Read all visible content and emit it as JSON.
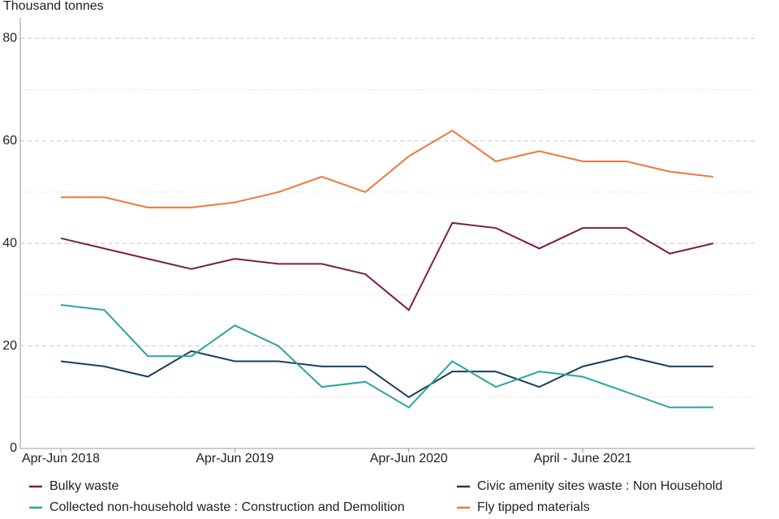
{
  "chart_data": {
    "type": "line",
    "y_axis_label": "Thousand tonnes",
    "categories": [
      "Apr-Jun 2018",
      null,
      null,
      null,
      "Apr-Jun 2019",
      null,
      null,
      null,
      "Apr-Jun 2020",
      null,
      null,
      null,
      "April - June 2021",
      null,
      null,
      null
    ],
    "series": [
      {
        "name": "Bulky waste",
        "color": "#7b1e4d",
        "values": [
          41,
          39,
          37,
          35,
          37,
          36,
          36,
          34,
          27,
          44,
          43,
          39,
          43,
          43,
          38,
          40
        ]
      },
      {
        "name": "Civic amenity sites waste : Non Household",
        "color": "#1b3d61",
        "values": [
          17,
          16,
          14,
          19,
          17,
          17,
          16,
          16,
          10,
          15,
          15,
          12,
          16,
          18,
          16,
          16
        ]
      },
      {
        "name": "Collected non-household waste : Construction and Demolition",
        "color": "#2ba59b",
        "values": [
          28,
          27,
          18,
          18,
          24,
          20,
          12,
          13,
          8,
          17,
          12,
          15,
          14,
          11,
          8,
          8
        ]
      },
      {
        "name": "Fly tipped materials",
        "color": "#f0763a",
        "values": [
          49,
          49,
          47,
          47,
          48,
          50,
          53,
          50,
          57,
          62,
          56,
          58,
          56,
          56,
          54,
          53
        ]
      }
    ],
    "ylim": [
      0,
      84
    ],
    "yticks": [
      0,
      20,
      40,
      60,
      80
    ],
    "minor_yticks": [
      10,
      30,
      50,
      70
    ],
    "grid": true,
    "legend": "bottom"
  }
}
